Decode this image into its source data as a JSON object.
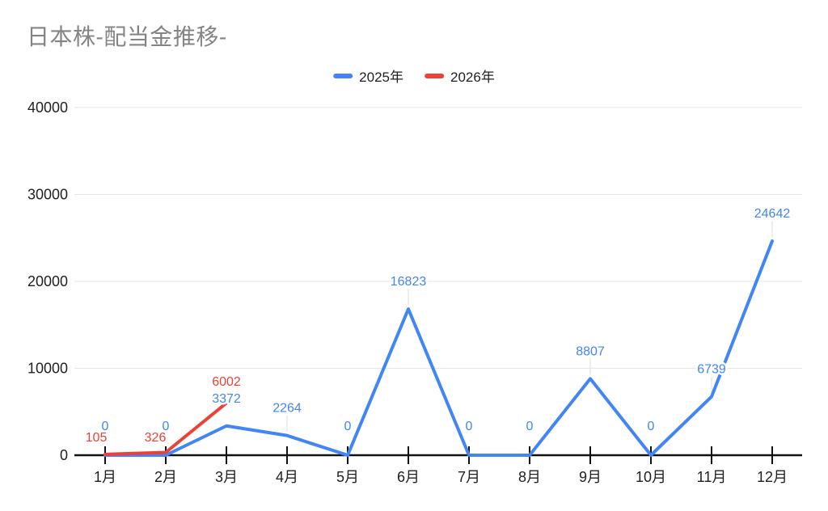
{
  "title": {
    "text": "日本株-配当金推移-",
    "color": "#848484"
  },
  "chart_data": {
    "type": "line",
    "title": "日本株-配当金推移-",
    "categories": [
      "1月",
      "2月",
      "3月",
      "4月",
      "5月",
      "6月",
      "7月",
      "8月",
      "9月",
      "10月",
      "11月",
      "12月"
    ],
    "series": [
      {
        "name": "2025年",
        "color": "#4285F4",
        "values": [
          0,
          0,
          3372,
          2264,
          0,
          16823,
          0,
          0,
          8807,
          0,
          6739,
          24642
        ]
      },
      {
        "name": "2026年",
        "color": "#EA4335",
        "values": [
          105,
          326,
          6002,
          null,
          null,
          null,
          null,
          null,
          null,
          null,
          null,
          null
        ]
      }
    ],
    "xlabel": "",
    "ylabel": "",
    "ylim": [
      0,
      40000
    ],
    "yticks": [
      0,
      10000,
      20000,
      30000,
      40000
    ],
    "grid": true,
    "legend_position": "top",
    "data_labels": true
  },
  "styles": {
    "background": "#ffffff",
    "grid_color": "#e6e6e6",
    "leader_color": "#e8e8e8",
    "axis_color": "#111111",
    "axis_label_color": "#1f1f1f",
    "halo_color": "#ffffff"
  }
}
